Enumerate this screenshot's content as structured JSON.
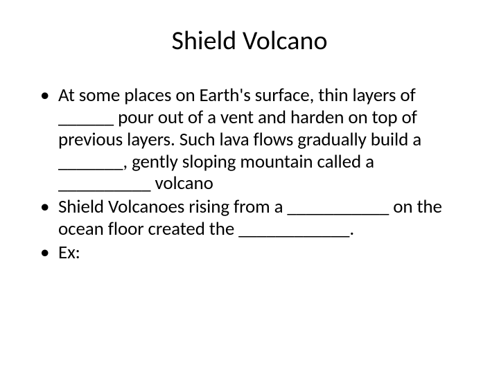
{
  "slide": {
    "title": "Shield Volcano",
    "bullets": [
      "At some places on Earth's surface, thin layers of ______ pour out of a vent and harden on top of previous layers.  Such lava flows gradually build a _______, gently sloping mountain called a __________ volcano",
      "Shield Volcanoes rising from a ___________ on the ocean floor created the ____________.",
      "Ex:"
    ],
    "colors": {
      "background": "#ffffff",
      "text": "#000000"
    },
    "typography": {
      "title_fontsize": 38,
      "body_fontsize": 27,
      "font_family": "Calibri"
    }
  }
}
